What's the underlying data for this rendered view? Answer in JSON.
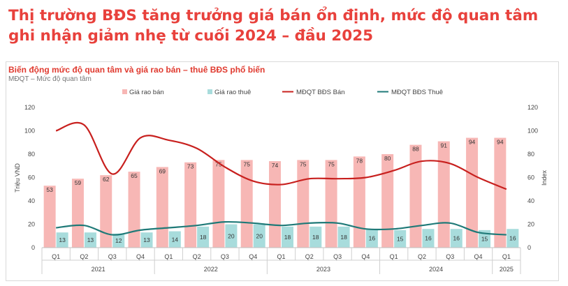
{
  "headline": {
    "line1": "Thị trường BĐS tăng trưởng giá bán ổn định, mức độ quan tâm",
    "line2": "ghi nhận giảm nhẹ từ cuối 2024 – đầu 2025"
  },
  "colors": {
    "headline": "#e8413c",
    "sale_bar": "#f7b7b5",
    "rent_bar": "#a8dcdc",
    "sale_line": "#c8201e",
    "rent_line": "#1f7a78"
  },
  "chart_data": {
    "type": "bar",
    "title": "Biến động mức độ quan tâm và giá rao bán – thuê BĐS phổ biến",
    "subtitle": "MĐQT – Mức độ quan tâm",
    "ylabel": "Triệu VND",
    "y2label": "Index",
    "ylim": [
      0,
      120
    ],
    "y2lim": [
      0,
      120
    ],
    "yticks": [
      "0",
      "20",
      "40",
      "60",
      "80",
      "100",
      "120"
    ],
    "categories": [
      "Q1",
      "Q2",
      "Q3",
      "Q4",
      "Q1",
      "Q2",
      "Q3",
      "Q4",
      "Q1",
      "Q2",
      "Q3",
      "Q4",
      "Q1",
      "Q2",
      "Q3",
      "Q4",
      "Q1"
    ],
    "years": [
      {
        "label": "2021",
        "quarters": 4
      },
      {
        "label": "2022",
        "quarters": 4
      },
      {
        "label": "2023",
        "quarters": 4
      },
      {
        "label": "2024",
        "quarters": 4
      },
      {
        "label": "2025",
        "quarters": 1
      }
    ],
    "legend_position": "top",
    "series": [
      {
        "name": "Giá rao bán",
        "kind": "bar",
        "values": [
          53,
          59,
          62,
          65,
          69,
          73,
          75,
          75,
          74,
          75,
          75,
          78,
          80,
          88,
          91,
          94,
          94
        ]
      },
      {
        "name": "Giá rao thuê",
        "kind": "bar",
        "values": [
          13,
          13,
          12,
          13,
          14,
          18,
          20,
          20,
          18,
          18,
          18,
          16,
          15,
          16,
          16,
          15,
          16
        ]
      },
      {
        "name": "MĐQT BĐS Bán",
        "kind": "line",
        "axis": "right",
        "values": [
          100,
          105,
          63,
          94,
          92,
          85,
          69,
          57,
          54,
          59,
          59,
          60,
          66,
          74,
          72,
          60,
          50
        ]
      },
      {
        "name": "MĐQT BĐS Thuê",
        "kind": "line",
        "axis": "right",
        "values": [
          17,
          19,
          11,
          15,
          17,
          19,
          22,
          21,
          19,
          21,
          21,
          16,
          16,
          19,
          21,
          13,
          11
        ]
      }
    ]
  }
}
